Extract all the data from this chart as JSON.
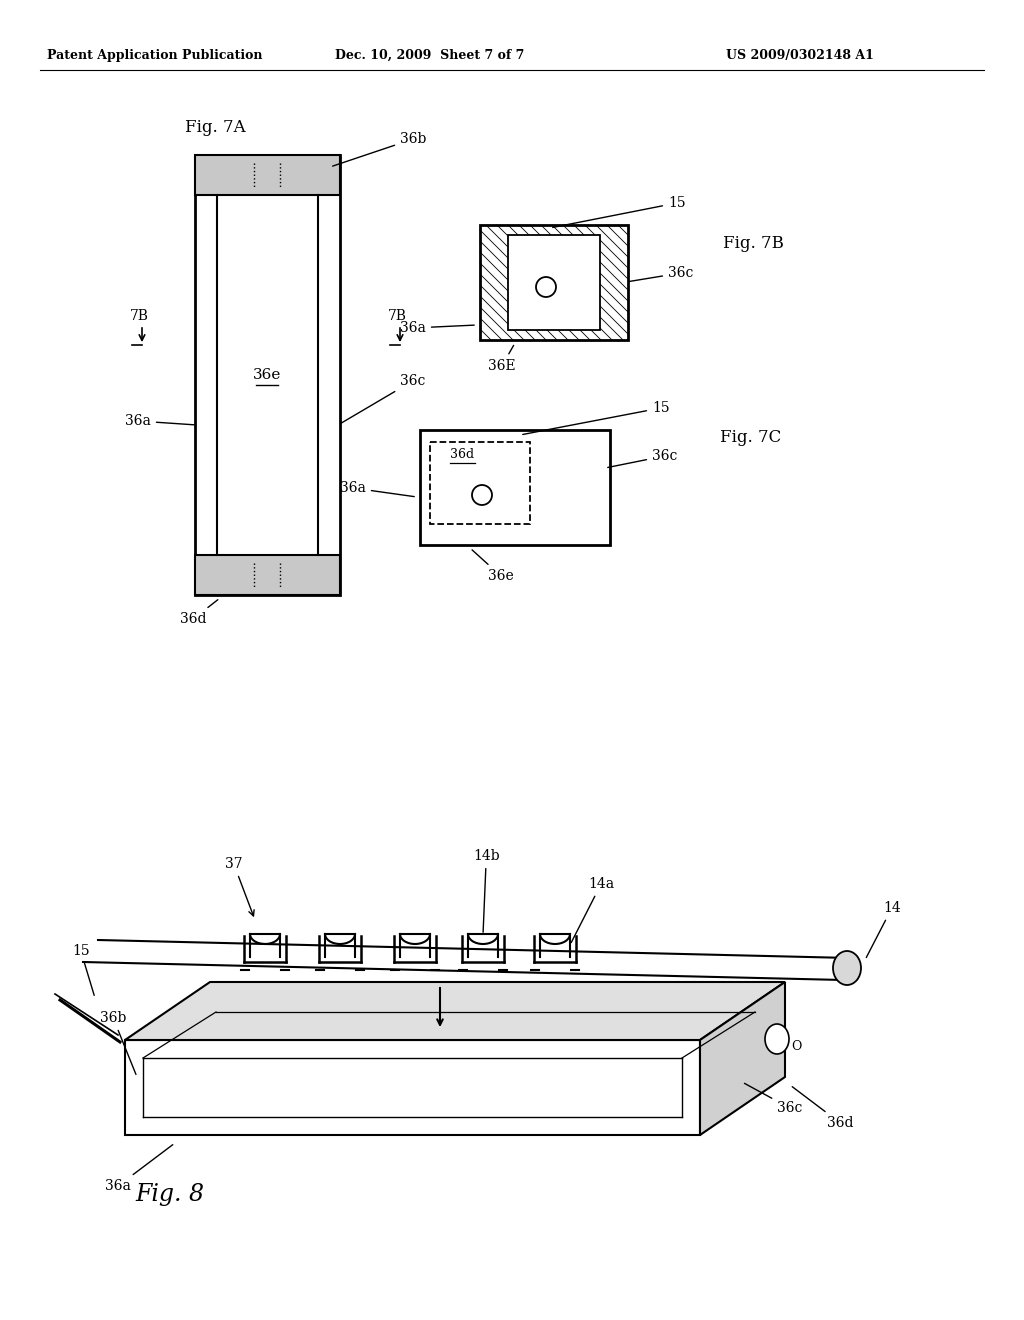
{
  "background_color": "#ffffff",
  "header_left": "Patent Application Publication",
  "header_mid": "Dec. 10, 2009  Sheet 7 of 7",
  "header_right": "US 2009/0302148 A1",
  "fig7a_label": "Fig. 7A",
  "fig7b_label": "Fig. 7B",
  "fig7c_label": "Fig. 7C",
  "fig8_label": "Fig. 8"
}
